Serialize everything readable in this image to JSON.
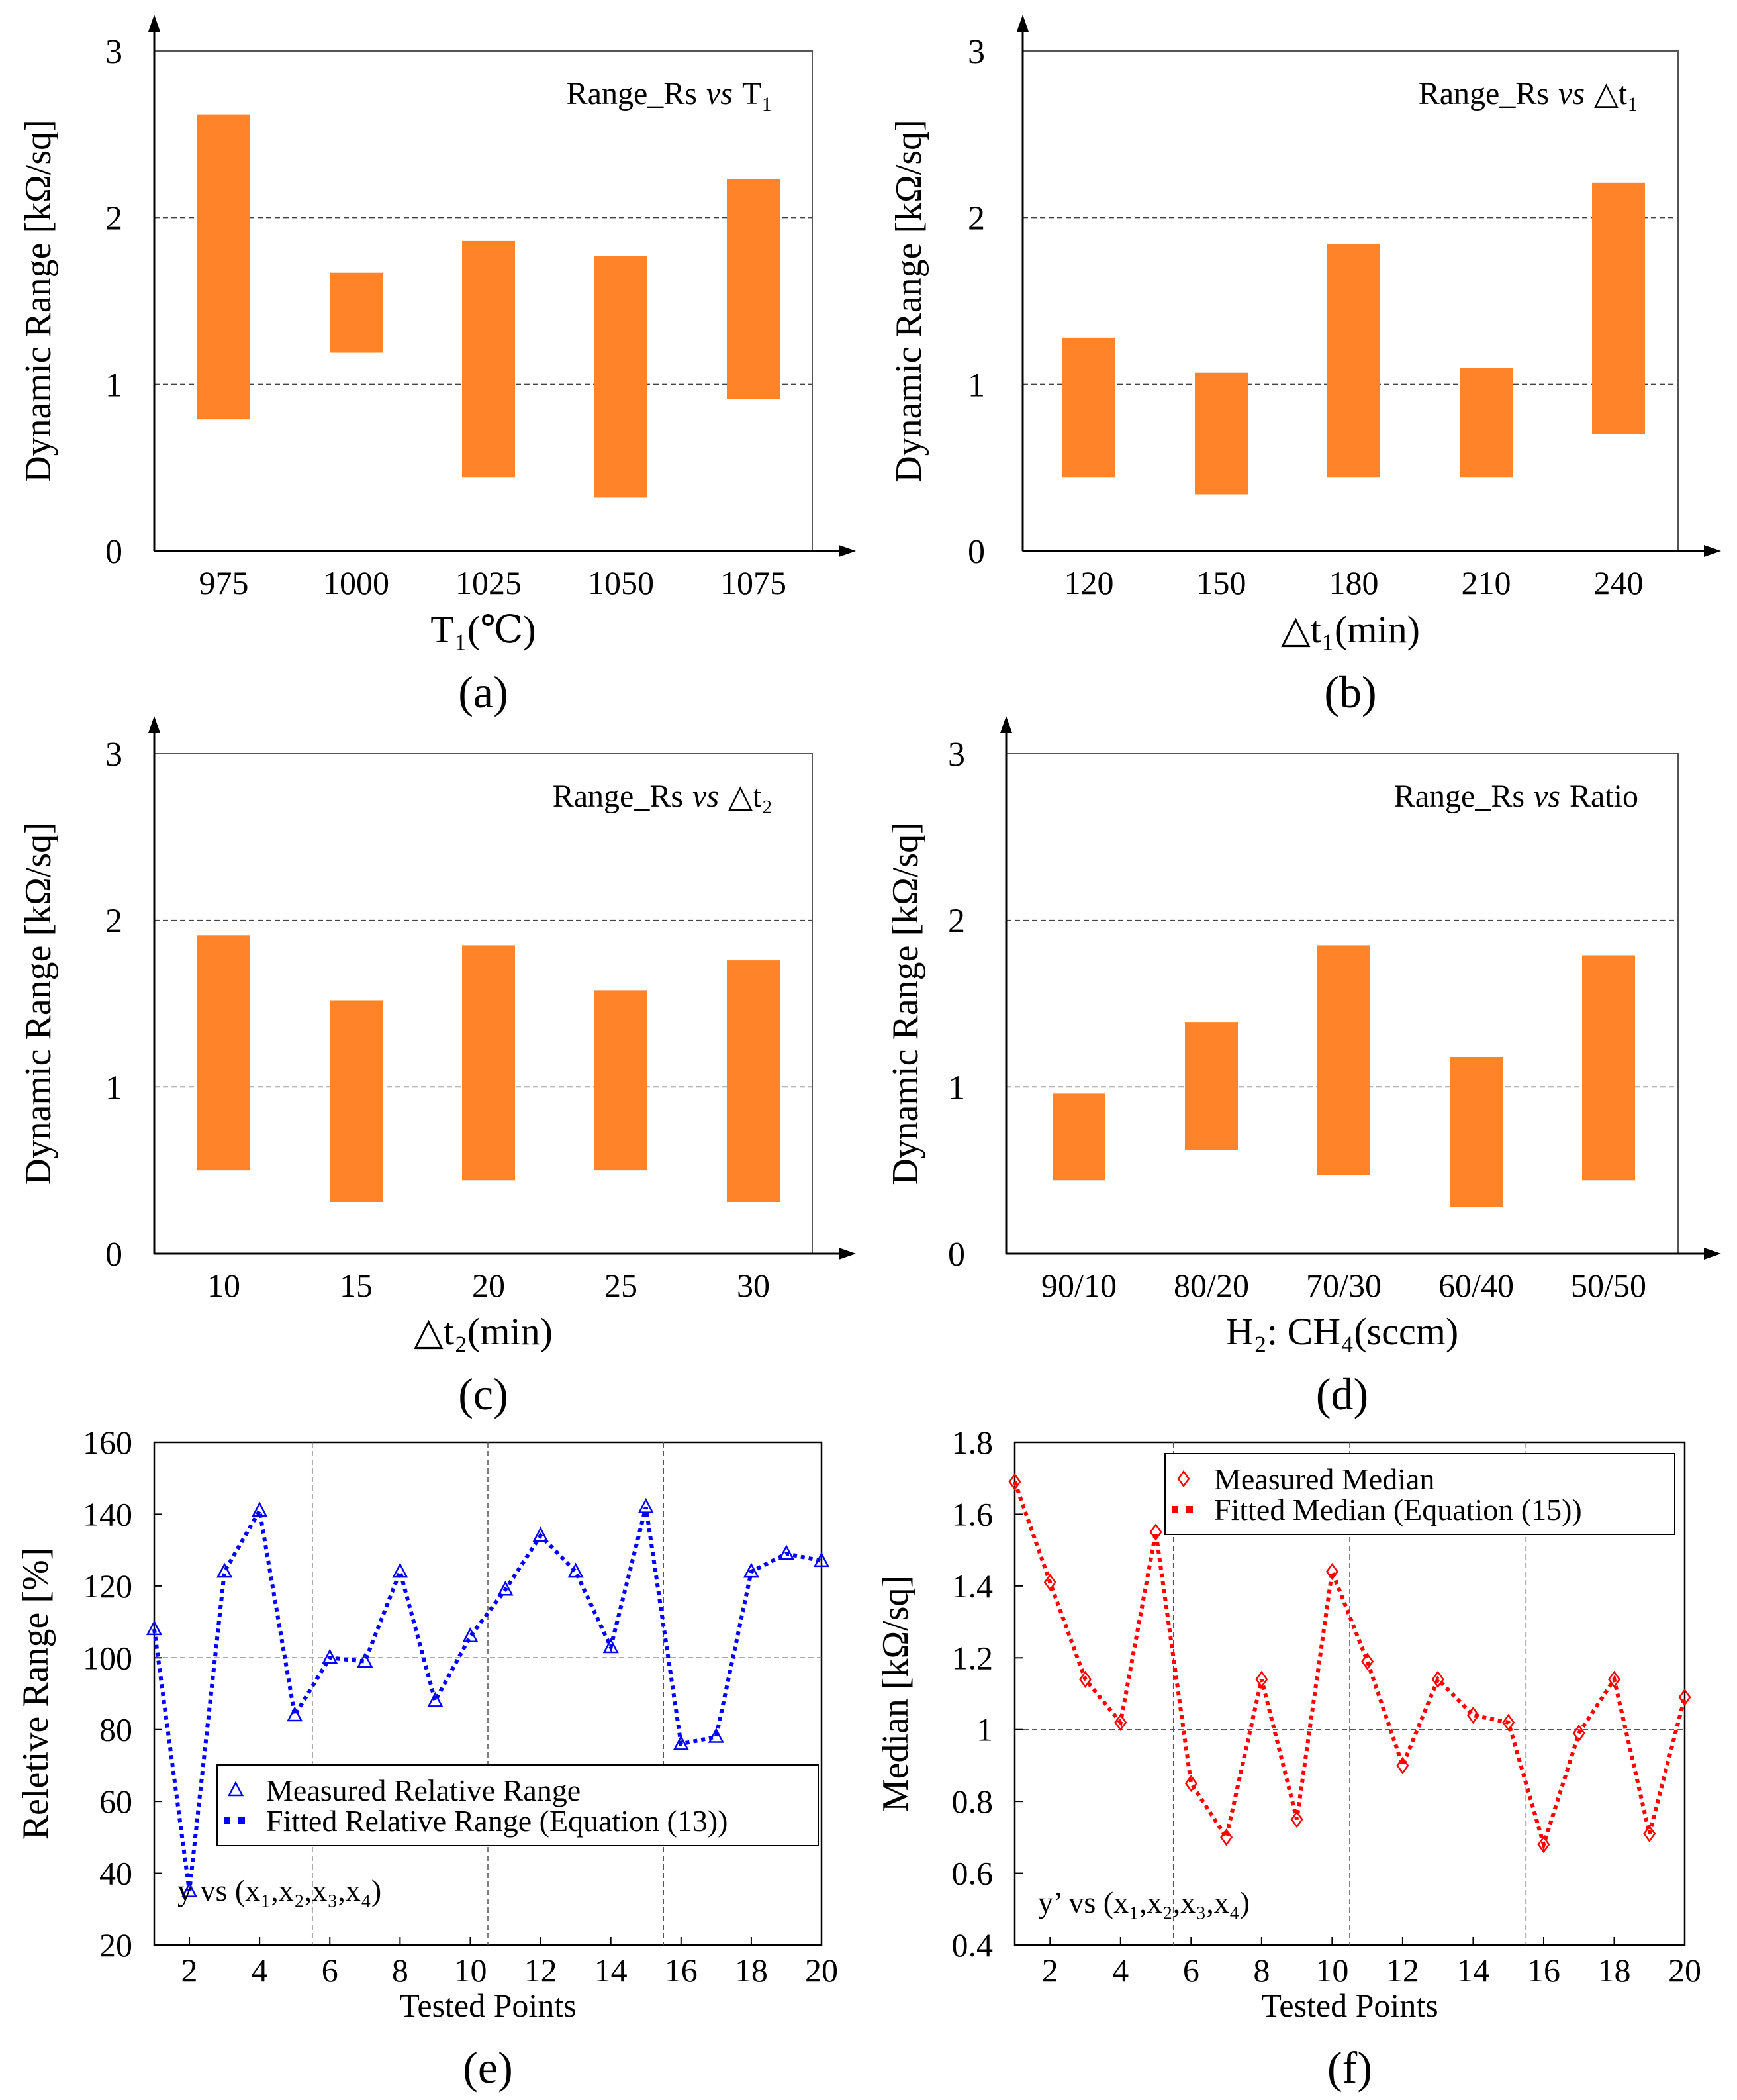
{
  "chart_data": [
    {
      "panel": "(a)",
      "type": "floating-bar",
      "annotation": "Range_Rs",
      "annotation_vs": "vs",
      "annotation_var": "T₁",
      "xlabel": "T₁(℃)",
      "ylabel": "Dynamic Range [kΩ/sq]",
      "categories": [
        "975",
        "1000",
        "1025",
        "1050",
        "1075"
      ],
      "low": [
        0.79,
        1.19,
        0.44,
        0.32,
        0.91
      ],
      "high": [
        2.62,
        1.67,
        1.86,
        1.77,
        2.23
      ],
      "ylim": [
        0,
        3
      ],
      "yticks": [
        "0",
        "1",
        "2",
        "3"
      ],
      "grid_y": [
        1,
        2
      ],
      "bar_color": "#FF8329"
    },
    {
      "panel": "(b)",
      "type": "floating-bar",
      "annotation": "Range_Rs",
      "annotation_vs": "vs",
      "annotation_var": "△t₁",
      "xlabel": "△t₁(min)",
      "ylabel": "Dynamic Range [kΩ/sq]",
      "categories": [
        "120",
        "150",
        "180",
        "210",
        "240"
      ],
      "low": [
        0.44,
        0.34,
        0.44,
        0.44,
        0.7
      ],
      "high": [
        1.28,
        1.07,
        1.84,
        1.1,
        2.21
      ],
      "ylim": [
        0,
        3
      ],
      "yticks": [
        "0",
        "1",
        "2",
        "3"
      ],
      "grid_y": [
        1,
        2
      ],
      "bar_color": "#FF8329"
    },
    {
      "panel": "(c)",
      "type": "floating-bar",
      "annotation": "Range_Rs",
      "annotation_vs": "vs",
      "annotation_var": "△t₂",
      "xlabel": "△t₂(min)",
      "ylabel": "Dynamic Range [kΩ/sq]",
      "categories": [
        "10",
        "15",
        "20",
        "25",
        "30"
      ],
      "low": [
        0.5,
        0.31,
        0.44,
        0.5,
        0.31
      ],
      "high": [
        1.91,
        1.52,
        1.85,
        1.58,
        1.76
      ],
      "ylim": [
        0,
        3
      ],
      "yticks": [
        "0",
        "1",
        "2",
        "3"
      ],
      "grid_y": [
        1,
        2
      ],
      "bar_color": "#FF8329"
    },
    {
      "panel": "(d)",
      "type": "floating-bar",
      "annotation": "Range_Rs",
      "annotation_vs": "vs",
      "annotation_var": "Ratio",
      "xlabel": "H₂: CH₄(sccm)",
      "ylabel": "Dynamic Range [kΩ/sq]",
      "categories": [
        "90/10",
        "80/20",
        "70/30",
        "60/40",
        "50/50"
      ],
      "low": [
        0.44,
        0.62,
        0.47,
        0.28,
        0.44
      ],
      "high": [
        0.96,
        1.39,
        1.85,
        1.18,
        1.79
      ],
      "ylim": [
        0,
        3
      ],
      "yticks": [
        "0",
        "1",
        "2",
        "3"
      ],
      "grid_y": [
        1,
        2
      ],
      "bar_color": "#FF8329"
    },
    {
      "panel": "(e)",
      "type": "line",
      "xlabel": "Tested Points",
      "ylabel": "Reletive Range [%]",
      "x": [
        1,
        2,
        3,
        4,
        5,
        6,
        7,
        8,
        9,
        10,
        11,
        12,
        13,
        14,
        15,
        16,
        17,
        18,
        19,
        20
      ],
      "series": [
        {
          "name": "Measured Relative Range",
          "marker": "triangle",
          "values": [
            108,
            35,
            124,
            141,
            84,
            100,
            99,
            124,
            88,
            106,
            119,
            134,
            124,
            103,
            142,
            76,
            78,
            124,
            129,
            127
          ]
        },
        {
          "name": "Fitted Relative Range (Equation (13))",
          "style": "dotted",
          "values": [
            108,
            35,
            124,
            141,
            84,
            100,
            99,
            124,
            88,
            106,
            119,
            134,
            124,
            103,
            142,
            76,
            78,
            124,
            129,
            127
          ]
        }
      ],
      "annotation": "y vs (x₁,x₂,x₃,x₄)",
      "xlim": [
        1,
        20
      ],
      "ylim": [
        20,
        160
      ],
      "xticks": [
        2,
        4,
        6,
        8,
        10,
        12,
        14,
        16,
        18,
        20
      ],
      "yticks": [
        20,
        40,
        60,
        80,
        100,
        120,
        140,
        160
      ],
      "ref_y": 100,
      "ref_x": [
        5.5,
        10.5,
        15.5
      ],
      "color": "#0000FF"
    },
    {
      "panel": "(f)",
      "type": "line",
      "xlabel": "Tested Points",
      "ylabel": "Median [kΩ/sq]",
      "x": [
        1,
        2,
        3,
        4,
        5,
        6,
        7,
        8,
        9,
        10,
        11,
        12,
        13,
        14,
        15,
        16,
        17,
        18,
        19,
        20
      ],
      "series": [
        {
          "name": "Measured Median",
          "marker": "diamond",
          "values": [
            1.69,
            1.41,
            1.14,
            1.02,
            1.55,
            0.85,
            0.7,
            1.14,
            0.75,
            1.44,
            1.19,
            0.9,
            1.14,
            1.04,
            1.02,
            0.68,
            0.99,
            1.14,
            0.71,
            1.09
          ]
        },
        {
          "name": "Fitted Median (Equation (15))",
          "style": "dotted",
          "values": [
            1.69,
            1.41,
            1.14,
            1.02,
            1.55,
            0.85,
            0.7,
            1.14,
            0.75,
            1.44,
            1.19,
            0.9,
            1.14,
            1.04,
            1.02,
            0.68,
            0.99,
            1.14,
            0.71,
            1.09
          ]
        }
      ],
      "annotation": "y’ vs (x₁,x₂,x₃,x₄)",
      "xlim": [
        1,
        20
      ],
      "ylim": [
        0.4,
        1.8
      ],
      "xticks": [
        2,
        4,
        6,
        8,
        10,
        12,
        14,
        16,
        18,
        20
      ],
      "yticks": [
        "0.4",
        "0.6",
        "0.8",
        "1",
        "1.2",
        "1.4",
        "1.6",
        "1.8"
      ],
      "ref_y": 1,
      "ref_x": [
        5.5,
        10.5,
        15.5
      ],
      "color": "#FF0000"
    }
  ]
}
